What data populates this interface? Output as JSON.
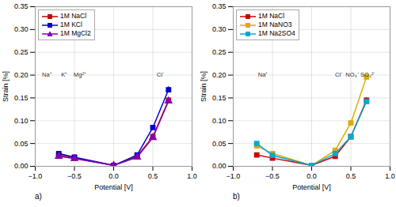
{
  "chart_data": [
    {
      "type": "line",
      "title": "a)",
      "xlabel": "Potential [V]",
      "ylabel": "Strain [%]",
      "xlim": [
        -1,
        1
      ],
      "xticks": [
        {
          "value": -1,
          "label": "−1.0"
        },
        {
          "value": -0.5,
          "label": "−0.5"
        },
        {
          "value": 0,
          "label": "0.0"
        },
        0.5,
        {
          "value": 1,
          "label": "1.0"
        }
      ],
      "ylim": [
        0,
        0.35
      ],
      "yticks": [
        {
          "value": 0,
          "label": "0.00"
        },
        0.05,
        {
          "value": 0.1,
          "label": "0.10"
        },
        0.15,
        {
          "value": 0.2,
          "label": "0.20"
        },
        0.25,
        {
          "value": 0.3,
          "label": "0.30"
        },
        0.35
      ],
      "grid": true,
      "legend": "upper left",
      "x": [
        -0.7,
        -0.5,
        0.0,
        0.3,
        0.5,
        0.7
      ],
      "series": [
        {
          "name": "1M NaCl",
          "color": "#cc0000",
          "marker": "square",
          "values": [
            0.025,
            0.018,
            0.002,
            0.022,
            0.065,
            0.145
          ],
          "errors": [
            0.003,
            0.002,
            0.001,
            0.002,
            0.004,
            0.006
          ]
        },
        {
          "name": "1M KCl",
          "color": "#0000cc",
          "marker": "square",
          "values": [
            0.028,
            0.02,
            0.002,
            0.025,
            0.085,
            0.168
          ],
          "errors": [
            0.003,
            0.002,
            0.001,
            0.002,
            0.004,
            0.007
          ]
        },
        {
          "name": "1M MgCl2",
          "color": "#8800aa",
          "marker": "triangle",
          "values": [
            0.022,
            0.017,
            0.002,
            0.02,
            0.063,
            0.143
          ],
          "errors": [
            0.002,
            0.002,
            0.001,
            0.002,
            0.003,
            0.006
          ]
        }
      ],
      "annotations": [
        {
          "text": "Na⁺",
          "x": -0.85,
          "y": 0.2
        },
        {
          "text": "K⁺",
          "x": -0.63,
          "y": 0.2
        },
        {
          "text": "Mg²⁺",
          "x": -0.43,
          "y": 0.2
        },
        {
          "text": "Cl⁻",
          "x": 0.6,
          "y": 0.2
        }
      ]
    },
    {
      "type": "line",
      "title": "b)",
      "xlabel": "Potential [V]",
      "ylabel": "Strain [%]",
      "xlim": [
        -1,
        1
      ],
      "xticks": [
        {
          "value": -1,
          "label": "−1.0"
        },
        {
          "value": -0.5,
          "label": "−0.5"
        },
        {
          "value": 0,
          "label": "0.0"
        },
        0.5,
        {
          "value": 1,
          "label": "1.0"
        }
      ],
      "ylim": [
        0,
        0.35
      ],
      "yticks": [
        {
          "value": 0,
          "label": "0.00"
        },
        0.05,
        {
          "value": 0.1,
          "label": "0.10"
        },
        0.15,
        {
          "value": 0.2,
          "label": "0.20"
        },
        0.25,
        {
          "value": 0.3,
          "label": "0.30"
        },
        0.35
      ],
      "grid": true,
      "legend": "upper left",
      "x": [
        -0.7,
        -0.5,
        0.0,
        0.3,
        0.5,
        0.7
      ],
      "series": [
        {
          "name": "1M NaCl",
          "color": "#cc0000",
          "marker": "square",
          "values": [
            0.025,
            0.018,
            0.002,
            0.022,
            0.065,
            0.145
          ],
          "errors": [
            0.003,
            0.002,
            0.001,
            0.002,
            0.004,
            0.006
          ]
        },
        {
          "name": "1M NaNO3",
          "color": "#ddaa00",
          "marker": "square",
          "values": [
            0.045,
            0.028,
            0.002,
            0.035,
            0.095,
            0.196
          ],
          "errors": [
            0.003,
            0.002,
            0.001,
            0.003,
            0.005,
            0.007
          ]
        },
        {
          "name": "1M Na2SO4",
          "color": "#00aacc",
          "marker": "square",
          "values": [
            0.05,
            0.024,
            0.002,
            0.028,
            0.065,
            0.142
          ],
          "errors": [
            0.003,
            0.002,
            0.001,
            0.002,
            0.004,
            0.006
          ]
        }
      ],
      "annotations": [
        {
          "text": "Na⁺",
          "x": -0.62,
          "y": 0.2
        },
        {
          "text": "Cl⁻",
          "x": 0.35,
          "y": 0.2
        },
        {
          "text": "NO₃⁻",
          "x": 0.52,
          "y": 0.2
        },
        {
          "text": "SO₄²⁻",
          "x": 0.72,
          "y": 0.2
        }
      ]
    }
  ]
}
